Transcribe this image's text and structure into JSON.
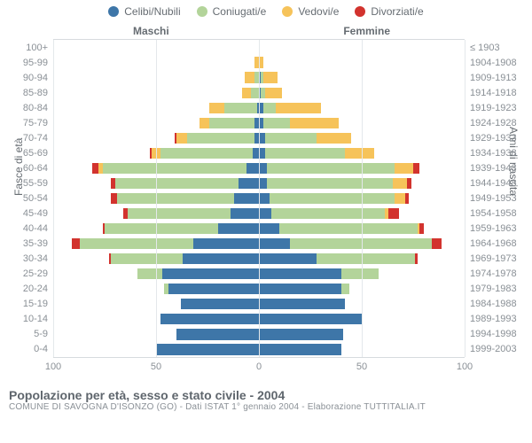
{
  "legend": {
    "items": [
      {
        "label": "Celibi/Nubili",
        "color": "#3e76a8"
      },
      {
        "label": "Coniugati/e",
        "color": "#b3d49a"
      },
      {
        "label": "Vedovi/e",
        "color": "#f6c35a"
      },
      {
        "label": "Divorziati/e",
        "color": "#d2332e"
      }
    ]
  },
  "chart": {
    "type": "population-pyramid",
    "x_max": 100,
    "x_ticks": [
      100,
      50,
      0,
      50,
      100
    ],
    "male_label": "Maschi",
    "female_label": "Femmine",
    "y_label_left": "Fasce di età",
    "y_label_right": "Anni di nascita",
    "background_color": "#ffffff",
    "grid_color": "#e4e8eb",
    "axis_color": "#d7dbde",
    "tick_font_color": "#8a9096",
    "colors": {
      "single": "#3e76a8",
      "married": "#b3d49a",
      "widowed": "#f6c35a",
      "divorced": "#d2332e"
    },
    "rows": [
      {
        "age": "100+",
        "birth": "≤ 1903",
        "m": [
          0,
          0,
          0,
          0
        ],
        "f": [
          0,
          0,
          0,
          0
        ]
      },
      {
        "age": "95-99",
        "birth": "1904-1908",
        "m": [
          0,
          0,
          2,
          0
        ],
        "f": [
          0,
          0,
          2,
          0
        ]
      },
      {
        "age": "90-94",
        "birth": "1909-1913",
        "m": [
          0,
          2,
          5,
          0
        ],
        "f": [
          1,
          1,
          7,
          0
        ]
      },
      {
        "age": "85-89",
        "birth": "1914-1918",
        "m": [
          0,
          4,
          4,
          0
        ],
        "f": [
          1,
          2,
          8,
          0
        ]
      },
      {
        "age": "80-84",
        "birth": "1919-1923",
        "m": [
          1,
          16,
          7,
          0
        ],
        "f": [
          2,
          6,
          22,
          0
        ]
      },
      {
        "age": "75-79",
        "birth": "1924-1928",
        "m": [
          2,
          22,
          5,
          0
        ],
        "f": [
          2,
          13,
          24,
          0
        ]
      },
      {
        "age": "70-74",
        "birth": "1929-1933",
        "m": [
          2,
          33,
          5,
          1
        ],
        "f": [
          3,
          25,
          17,
          0
        ]
      },
      {
        "age": "65-69",
        "birth": "1934-1938",
        "m": [
          3,
          45,
          4,
          1
        ],
        "f": [
          3,
          39,
          14,
          0
        ]
      },
      {
        "age": "60-64",
        "birth": "1939-1943",
        "m": [
          6,
          70,
          2,
          3
        ],
        "f": [
          4,
          62,
          9,
          3
        ]
      },
      {
        "age": "55-59",
        "birth": "1944-1948",
        "m": [
          10,
          60,
          0,
          2
        ],
        "f": [
          4,
          61,
          7,
          2
        ]
      },
      {
        "age": "50-54",
        "birth": "1949-1953",
        "m": [
          12,
          57,
          0,
          3
        ],
        "f": [
          5,
          61,
          5,
          2
        ]
      },
      {
        "age": "45-49",
        "birth": "1954-1958",
        "m": [
          14,
          50,
          0,
          2
        ],
        "f": [
          6,
          55,
          2,
          5
        ]
      },
      {
        "age": "40-44",
        "birth": "1959-1963",
        "m": [
          20,
          55,
          0,
          1
        ],
        "f": [
          10,
          67,
          1,
          2
        ]
      },
      {
        "age": "35-39",
        "birth": "1964-1968",
        "m": [
          32,
          55,
          0,
          4
        ],
        "f": [
          15,
          69,
          0,
          5
        ]
      },
      {
        "age": "30-34",
        "birth": "1969-1973",
        "m": [
          37,
          35,
          0,
          1
        ],
        "f": [
          28,
          48,
          0,
          1
        ]
      },
      {
        "age": "25-29",
        "birth": "1974-1978",
        "m": [
          47,
          12,
          0,
          0
        ],
        "f": [
          40,
          18,
          0,
          0
        ]
      },
      {
        "age": "20-24",
        "birth": "1979-1983",
        "m": [
          44,
          2,
          0,
          0
        ],
        "f": [
          40,
          4,
          0,
          0
        ]
      },
      {
        "age": "15-19",
        "birth": "1984-1988",
        "m": [
          38,
          0,
          0,
          0
        ],
        "f": [
          42,
          0,
          0,
          0
        ]
      },
      {
        "age": "10-14",
        "birth": "1989-1993",
        "m": [
          48,
          0,
          0,
          0
        ],
        "f": [
          50,
          0,
          0,
          0
        ]
      },
      {
        "age": "5-9",
        "birth": "1994-1998",
        "m": [
          40,
          0,
          0,
          0
        ],
        "f": [
          41,
          0,
          0,
          0
        ]
      },
      {
        "age": "0-4",
        "birth": "1999-2003",
        "m": [
          50,
          0,
          0,
          0
        ],
        "f": [
          40,
          0,
          0,
          0
        ]
      }
    ]
  },
  "caption": {
    "title": "Popolazione per età, sesso e stato civile - 2004",
    "subtitle": "COMUNE DI SAVOGNA D'ISONZO (GO) - Dati ISTAT 1° gennaio 2004 - Elaborazione TUTTITALIA.IT"
  }
}
